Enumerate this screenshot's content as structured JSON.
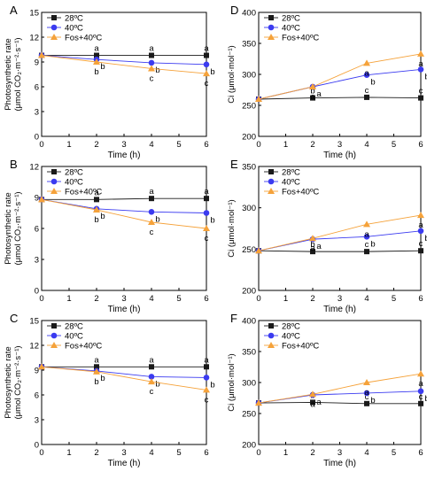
{
  "colors": {
    "black": "#1a1a1a",
    "blue": "#3b3bf0",
    "orange": "#f5a23a"
  },
  "series_names": [
    "28ºC",
    "40ºC",
    "Fos+40ºC"
  ],
  "chart_data": [
    {
      "panel": "A",
      "type": "line",
      "xlabel": "Time (h)",
      "ylabel": [
        "Photosynthetic rate",
        "(μmol CO₂·m⁻²·s⁻¹)"
      ],
      "x": [
        0,
        2,
        4,
        6
      ],
      "xlim": [
        0,
        6
      ],
      "xticks": [
        "0",
        "1",
        "2",
        "3",
        "4",
        "5",
        "6"
      ],
      "ylim": [
        0,
        15
      ],
      "yticks": [
        "0",
        "3",
        "6",
        "9",
        "12",
        "15"
      ],
      "legend": "top-left",
      "series": [
        {
          "name": "28ºC",
          "color": "#1a1a1a",
          "marker": "square",
          "values": [
            9.8,
            9.8,
            9.8,
            9.8
          ],
          "labels": [
            "",
            "a",
            "a",
            "a"
          ]
        },
        {
          "name": "40ºC",
          "color": "#3b3bf0",
          "marker": "circle",
          "values": [
            9.8,
            9.3,
            8.9,
            8.7
          ],
          "labels": [
            "",
            "b",
            "b",
            "b"
          ]
        },
        {
          "name": "Fos+40ºC",
          "color": "#f5a23a",
          "marker": "triangle",
          "values": [
            9.8,
            9.0,
            8.2,
            7.6
          ],
          "labels": [
            "",
            "b",
            "c",
            "c"
          ]
        }
      ]
    },
    {
      "panel": "D",
      "type": "line",
      "xlabel": "Time (h)",
      "ylabel": [
        "Ci (μmol·mol⁻¹)"
      ],
      "x": [
        0,
        2,
        4,
        6
      ],
      "xlim": [
        0,
        6
      ],
      "xticks": [
        "0",
        "1",
        "2",
        "3",
        "4",
        "5",
        "6"
      ],
      "ylim": [
        200,
        400
      ],
      "yticks": [
        "200",
        "250",
        "300",
        "350",
        "400"
      ],
      "legend": "top-left",
      "series": [
        {
          "name": "28ºC",
          "color": "#1a1a1a",
          "marker": "square",
          "values": [
            260,
            262,
            263,
            262
          ],
          "labels": [
            "",
            "b",
            "c",
            "c"
          ]
        },
        {
          "name": "40ºC",
          "color": "#3b3bf0",
          "marker": "circle",
          "values": [
            260,
            280,
            299,
            308
          ],
          "labels": [
            "",
            "a",
            "b",
            "b"
          ]
        },
        {
          "name": "Fos+40ºC",
          "color": "#f5a23a",
          "marker": "triangle",
          "values": [
            260,
            280,
            318,
            333
          ],
          "labels": [
            "",
            "a",
            "a",
            "a"
          ]
        }
      ]
    },
    {
      "panel": "B",
      "type": "line",
      "xlabel": "Time (h)",
      "ylabel": [
        "Photosynthetic rate",
        "(μmol CO₂·m⁻²·s⁻¹)"
      ],
      "x": [
        0,
        2,
        4,
        6
      ],
      "xlim": [
        0,
        6
      ],
      "xticks": [
        "0",
        "1",
        "2",
        "3",
        "4",
        "5",
        "6"
      ],
      "ylim": [
        0,
        12
      ],
      "yticks": [
        "0",
        "3",
        "6",
        "9",
        "12"
      ],
      "legend": "top-left",
      "series": [
        {
          "name": "28ºC",
          "color": "#1a1a1a",
          "marker": "square",
          "values": [
            8.8,
            8.8,
            8.9,
            8.9
          ],
          "labels": [
            "",
            "a",
            "a",
            "a"
          ]
        },
        {
          "name": "40ºC",
          "color": "#3b3bf0",
          "marker": "circle",
          "values": [
            8.8,
            7.9,
            7.6,
            7.5
          ],
          "labels": [
            "",
            "b",
            "b",
            "b"
          ]
        },
        {
          "name": "Fos+40ºC",
          "color": "#f5a23a",
          "marker": "triangle",
          "values": [
            8.8,
            7.8,
            6.6,
            6.0
          ],
          "labels": [
            "",
            "b",
            "c",
            "c"
          ]
        }
      ]
    },
    {
      "panel": "E",
      "type": "line",
      "xlabel": "Time (h)",
      "ylabel": [
        "Ci (μmol·mol⁻¹)"
      ],
      "x": [
        0,
        2,
        4,
        6
      ],
      "xlim": [
        0,
        6
      ],
      "xticks": [
        "0",
        "1",
        "2",
        "3",
        "4",
        "5",
        "6"
      ],
      "ylim": [
        200,
        350
      ],
      "yticks": [
        "200",
        "250",
        "300",
        "350"
      ],
      "legend": "top-left",
      "series": [
        {
          "name": "28ºC",
          "color": "#1a1a1a",
          "marker": "square",
          "values": [
            248,
            247,
            247,
            248
          ],
          "labels": [
            "",
            "b",
            "c",
            "c"
          ]
        },
        {
          "name": "40ºC",
          "color": "#3b3bf0",
          "marker": "circle",
          "values": [
            248,
            262,
            265,
            272
          ],
          "labels": [
            "",
            "a",
            "b",
            "b"
          ]
        },
        {
          "name": "Fos+40ºC",
          "color": "#f5a23a",
          "marker": "triangle",
          "values": [
            248,
            263,
            280,
            291
          ],
          "labels": [
            "",
            "a",
            "a",
            "a"
          ]
        }
      ]
    },
    {
      "panel": "C",
      "type": "line",
      "xlabel": "Time (h)",
      "ylabel": [
        "Photosynthetic rate",
        "(μmol CO₂·m⁻²·s⁻¹)"
      ],
      "x": [
        0,
        2,
        4,
        6
      ],
      "xlim": [
        0,
        6
      ],
      "xticks": [
        "0",
        "1",
        "2",
        "3",
        "4",
        "5",
        "6"
      ],
      "ylim": [
        0,
        15
      ],
      "yticks": [
        "0",
        "3",
        "6",
        "9",
        "12",
        "15"
      ],
      "legend": "top-left",
      "series": [
        {
          "name": "28ºC",
          "color": "#1a1a1a",
          "marker": "square",
          "values": [
            9.4,
            9.4,
            9.4,
            9.4
          ],
          "labels": [
            "",
            "a",
            "a",
            "a"
          ]
        },
        {
          "name": "40ºC",
          "color": "#3b3bf0",
          "marker": "circle",
          "values": [
            9.4,
            8.9,
            8.2,
            8.1
          ],
          "labels": [
            "",
            "b",
            "b",
            "b"
          ]
        },
        {
          "name": "Fos+40ºC",
          "color": "#f5a23a",
          "marker": "triangle",
          "values": [
            9.4,
            8.8,
            7.6,
            6.6
          ],
          "labels": [
            "",
            "b",
            "c",
            "c"
          ]
        }
      ]
    },
    {
      "panel": "F",
      "type": "line",
      "xlabel": "Time (h)",
      "ylabel": [
        "Ci (μmol·mol⁻¹)"
      ],
      "x": [
        0,
        2,
        4,
        6
      ],
      "xlim": [
        0,
        6
      ],
      "xticks": [
        "0",
        "1",
        "2",
        "3",
        "4",
        "5",
        "6"
      ],
      "ylim": [
        200,
        400
      ],
      "yticks": [
        "200",
        "250",
        "300",
        "350",
        "400"
      ],
      "legend": "top-left",
      "series": [
        {
          "name": "28ºC",
          "color": "#1a1a1a",
          "marker": "square",
          "values": [
            267,
            268,
            266,
            266
          ],
          "labels": [
            "",
            "b",
            "c",
            "c"
          ]
        },
        {
          "name": "40ºC",
          "color": "#3b3bf0",
          "marker": "circle",
          "values": [
            267,
            280,
            283,
            286
          ],
          "labels": [
            "",
            "a",
            "b",
            "b"
          ]
        },
        {
          "name": "Fos+40ºC",
          "color": "#f5a23a",
          "marker": "triangle",
          "values": [
            267,
            281,
            300,
            314
          ],
          "labels": [
            "",
            "a",
            "a",
            "a"
          ]
        }
      ]
    }
  ]
}
